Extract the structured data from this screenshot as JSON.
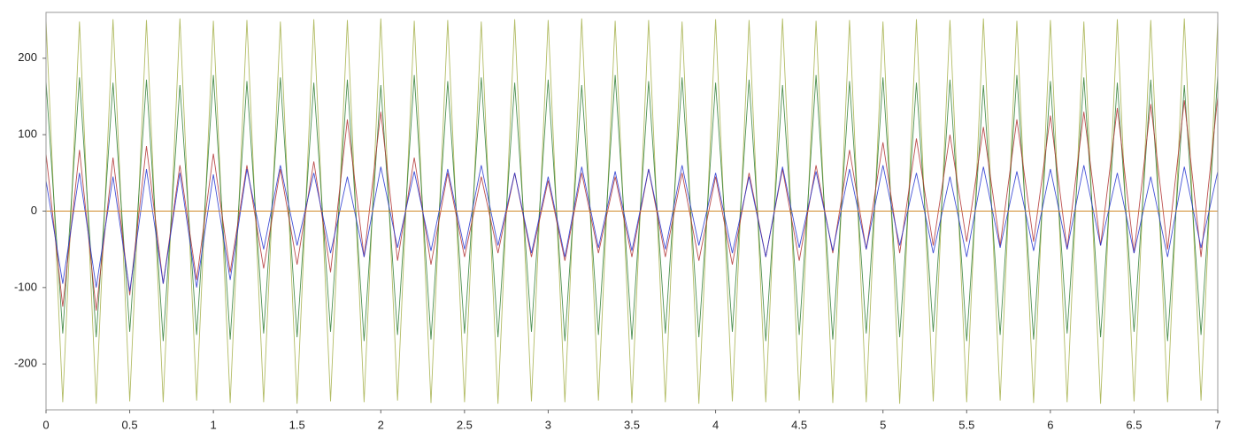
{
  "chart_data": {
    "type": "line",
    "x": [
      0,
      0.1,
      0.2,
      0.3,
      0.4,
      0.5,
      0.6,
      0.7,
      0.8,
      0.9,
      1,
      1.1,
      1.2,
      1.3,
      1.4,
      1.5,
      1.6,
      1.7,
      1.8,
      1.9,
      2,
      2.1,
      2.2,
      2.3,
      2.4,
      2.5,
      2.6,
      2.7,
      2.8,
      2.9,
      3,
      3.1,
      3.2,
      3.3,
      3.4,
      3.5,
      3.6,
      3.7,
      3.8,
      3.9,
      4,
      4.1,
      4.2,
      4.3,
      4.4,
      4.5,
      4.6,
      4.7,
      4.8,
      4.9,
      5,
      5.1,
      5.2,
      5.3,
      5.4,
      5.5,
      5.6,
      5.7,
      5.8,
      5.9,
      6,
      6.1,
      6.2,
      6.3,
      6.4,
      6.5,
      6.6,
      6.7,
      6.8,
      6.9,
      7
    ],
    "series": [
      {
        "color": "#a4b04a",
        "values": [
          250,
          -250,
          248,
          -252,
          251,
          -249,
          250,
          -250,
          252,
          -248,
          249,
          -251,
          250,
          -250,
          248,
          -252,
          251,
          -249,
          250,
          -250,
          252,
          -248,
          249,
          -251,
          250,
          -250,
          248,
          -252,
          251,
          -249,
          250,
          -250,
          252,
          -248,
          249,
          -251,
          250,
          -250,
          248,
          -252,
          251,
          -249,
          250,
          -250,
          252,
          -248,
          249,
          -251,
          250,
          -250,
          248,
          -252,
          251,
          -249,
          250,
          -250,
          252,
          -248,
          249,
          -251,
          250,
          -250,
          248,
          -252,
          251,
          -249,
          250,
          -250,
          252,
          -248,
          249
        ]
      },
      {
        "color": "#2e7d32",
        "values": [
          170,
          -160,
          175,
          -165,
          168,
          -158,
          172,
          -170,
          165,
          -162,
          178,
          -168,
          170,
          -160,
          175,
          -165,
          168,
          -158,
          172,
          -170,
          165,
          -162,
          178,
          -168,
          170,
          -160,
          175,
          -165,
          168,
          -158,
          172,
          -170,
          165,
          -162,
          178,
          -168,
          170,
          -160,
          175,
          -165,
          168,
          -158,
          172,
          -170,
          165,
          -162,
          178,
          -168,
          170,
          -160,
          175,
          -165,
          168,
          -158,
          172,
          -170,
          165,
          -162,
          178,
          -168,
          170,
          -160,
          175,
          -165,
          168,
          -158,
          172,
          -170,
          165,
          -162,
          178
        ]
      },
      {
        "color": "#b03030",
        "values": [
          75,
          -125,
          80,
          -130,
          70,
          -110,
          85,
          -95,
          60,
          -90,
          75,
          -80,
          60,
          -75,
          55,
          -70,
          65,
          -80,
          120,
          -60,
          130,
          -65,
          70,
          -70,
          50,
          -60,
          45,
          -55,
          50,
          -60,
          40,
          -65,
          50,
          -55,
          45,
          -60,
          55,
          -60,
          50,
          -65,
          45,
          -70,
          50,
          -60,
          55,
          -65,
          60,
          -55,
          80,
          -50,
          90,
          -55,
          95,
          -45,
          100,
          -40,
          110,
          -45,
          120,
          -40,
          125,
          -50,
          130,
          -45,
          135,
          -55,
          140,
          -50,
          145,
          -60,
          150
        ]
      },
      {
        "color": "#2233d0",
        "values": [
          40,
          -95,
          50,
          -100,
          45,
          -105,
          55,
          -95,
          50,
          -100,
          48,
          -90,
          55,
          -50,
          60,
          -45,
          50,
          -55,
          45,
          -60,
          58,
          -48,
          52,
          -52,
          55,
          -50,
          60,
          -45,
          50,
          -55,
          45,
          -60,
          58,
          -48,
          52,
          -52,
          55,
          -50,
          60,
          -45,
          50,
          -55,
          45,
          -60,
          58,
          -48,
          52,
          -52,
          55,
          -50,
          60,
          -45,
          50,
          -55,
          45,
          -60,
          58,
          -48,
          52,
          -52,
          55,
          -50,
          60,
          -45,
          50,
          -55,
          45,
          -60,
          58,
          -48,
          52
        ]
      }
    ],
    "xlim": [
      0,
      7
    ],
    "xticks": [
      0,
      0.5,
      1,
      1.5,
      2,
      2.5,
      3,
      3.5,
      4,
      4.5,
      5,
      5.5,
      6,
      6.5,
      7
    ],
    "ylim": [
      -260,
      260
    ],
    "yticks": [
      -200,
      -100,
      0,
      100,
      200
    ],
    "zero_line_color": "#d08a2a"
  }
}
